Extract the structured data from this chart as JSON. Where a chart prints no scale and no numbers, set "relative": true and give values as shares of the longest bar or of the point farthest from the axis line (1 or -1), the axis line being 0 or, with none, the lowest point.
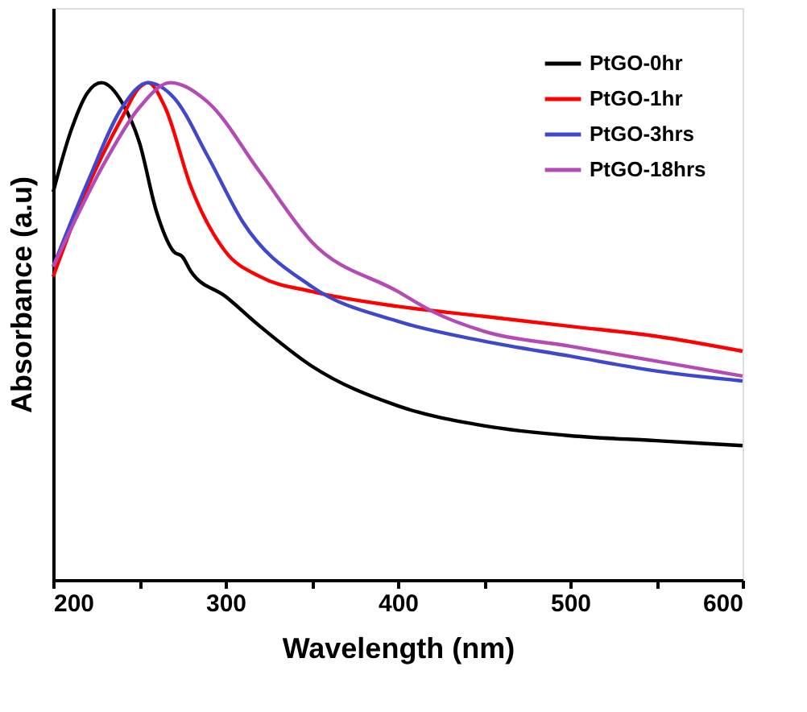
{
  "chart_data": {
    "type": "line",
    "xlabel": "Wavelength (nm)",
    "ylabel": "Absorbance (a.u)",
    "relative": true,
    "xlim": [
      200,
      600
    ],
    "xticks": [
      200,
      {
        "value": 250,
        "label": null
      },
      300,
      {
        "value": 350,
        "label": null
      },
      400,
      {
        "value": 450,
        "label": null
      },
      500,
      {
        "value": 550,
        "label": null
      },
      600
    ],
    "legend": "top right",
    "grid": false,
    "line_style": "solid",
    "marker": "none",
    "series": [
      {
        "name": "PtGO-0hr",
        "color": "#000000",
        "x": [
          200,
          210,
          220,
          228,
          240,
          250,
          260,
          270,
          275,
          280,
          300,
          320,
          350,
          400,
          450,
          500,
          550,
          600
        ],
        "values": [
          0.78,
          0.9,
          0.98,
          1.0,
          0.96,
          0.88,
          0.74,
          0.66,
          0.65,
          0.62,
          0.57,
          0.51,
          0.43,
          0.35,
          0.31,
          0.29,
          0.28,
          0.27
        ]
      },
      {
        "name": "PtGO-1hr",
        "color": "#ff0000",
        "x": [
          200,
          220,
          240,
          250,
          255,
          265,
          280,
          300,
          320,
          350,
          400,
          450,
          500,
          550,
          600
        ],
        "values": [
          0.61,
          0.79,
          0.93,
          0.99,
          1.0,
          0.95,
          0.79,
          0.66,
          0.61,
          0.58,
          0.55,
          0.53,
          0.51,
          0.49,
          0.46
        ]
      },
      {
        "name": "PtGO-3hrs",
        "color": "#3f48cc",
        "x": [
          200,
          220,
          240,
          255,
          270,
          290,
          310,
          350,
          400,
          450,
          500,
          550,
          600
        ],
        "values": [
          0.63,
          0.8,
          0.95,
          1.0,
          0.97,
          0.85,
          0.72,
          0.59,
          0.52,
          0.48,
          0.45,
          0.42,
          0.4
        ]
      },
      {
        "name": "PtGO-18hrs",
        "color": "#b44bb4",
        "x": [
          200,
          230,
          250,
          268,
          290,
          320,
          350,
          400,
          420,
          450,
          500,
          550,
          600
        ],
        "values": [
          0.63,
          0.84,
          0.95,
          1.0,
          0.96,
          0.82,
          0.68,
          0.58,
          0.54,
          0.5,
          0.47,
          0.44,
          0.41
        ]
      }
    ]
  }
}
